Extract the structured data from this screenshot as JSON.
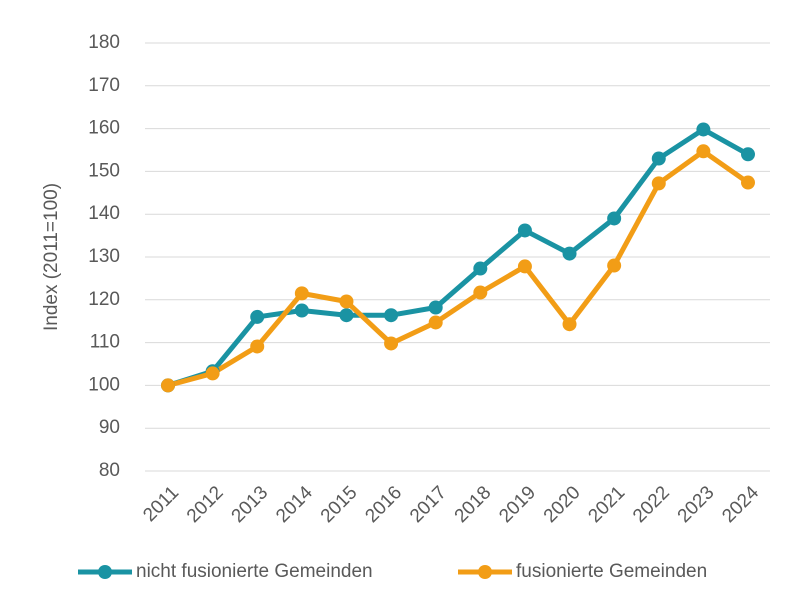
{
  "chart_data": {
    "type": "line",
    "y_label": "Index (2011=100)",
    "categories": [
      "2011",
      "2012",
      "2013",
      "2014",
      "2015",
      "2016",
      "2017",
      "2018",
      "2019",
      "2020",
      "2021",
      "2022",
      "2023",
      "2024"
    ],
    "series": [
      {
        "name": "nicht fusionierte Gemeinden",
        "color": "#1a93a3",
        "values": [
          100,
          103.3,
          116,
          117.5,
          116.4,
          116.4,
          118.2,
          127.3,
          136.2,
          130.8,
          139,
          153,
          159.8,
          154
        ]
      },
      {
        "name": "fusionierte Gemeinden",
        "color": "#f29d16",
        "values": [
          100,
          102.8,
          109.1,
          121.5,
          119.6,
          109.8,
          114.7,
          121.7,
          127.8,
          114.3,
          128,
          147.2,
          154.7,
          147.4
        ]
      }
    ],
    "ylim": [
      80,
      180
    ],
    "yticks": [
      80,
      90,
      100,
      110,
      120,
      130,
      140,
      150,
      160,
      170,
      180
    ],
    "grid": true
  }
}
